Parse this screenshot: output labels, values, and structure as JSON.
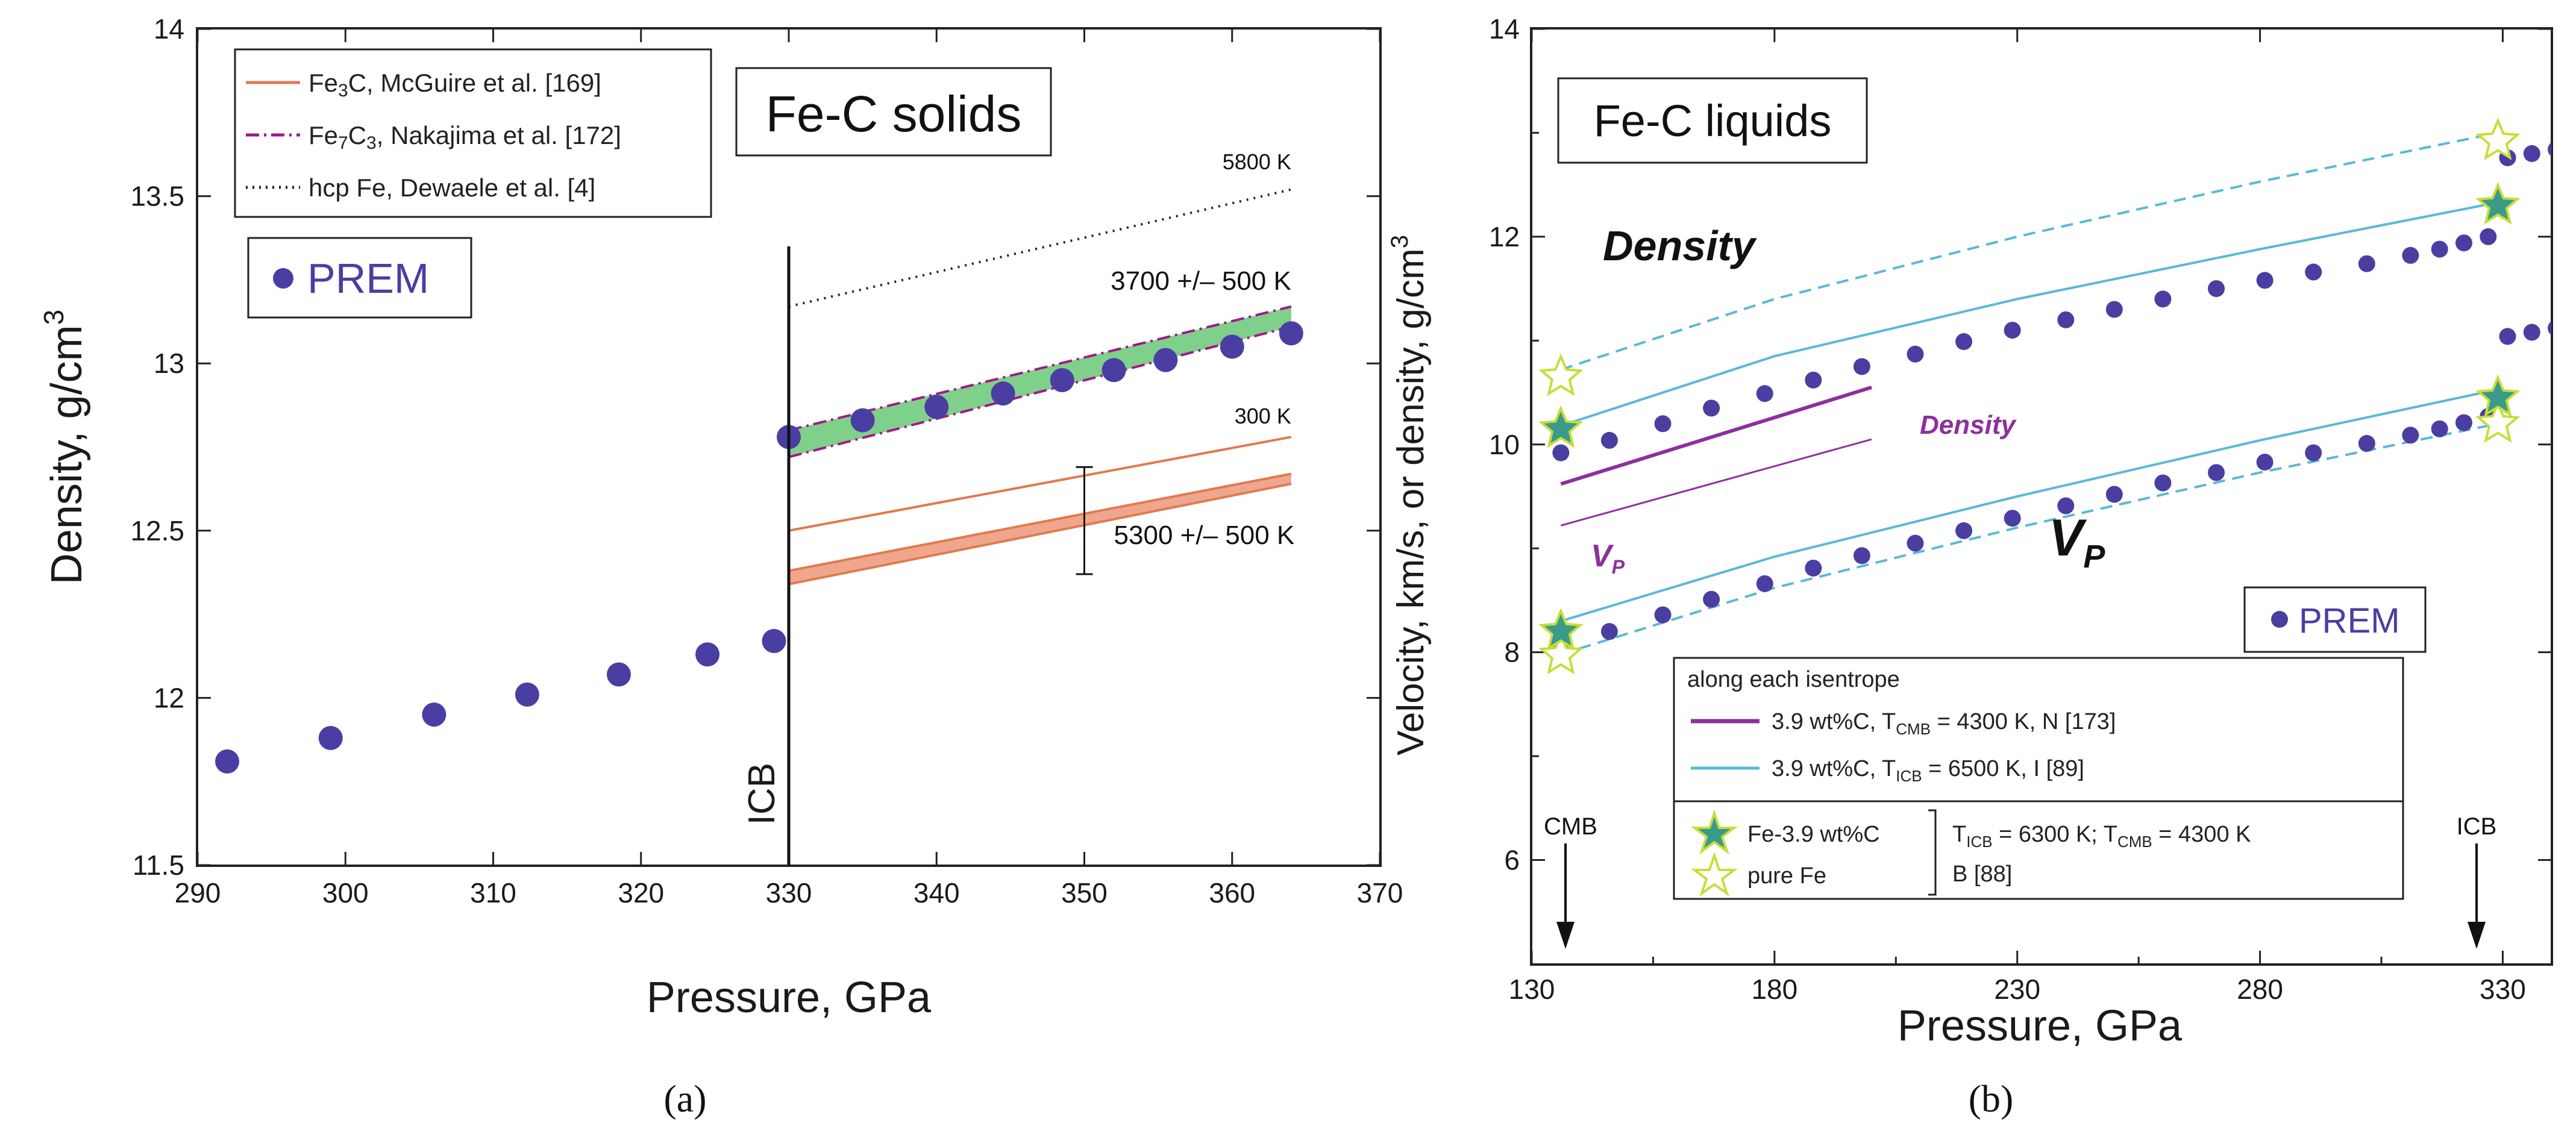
{
  "chart_data": [
    {
      "type": "scatter",
      "panel": "a",
      "caption": "(a)",
      "title": "Fe-C solids",
      "xlabel": "Pressure, GPa",
      "ylabel": "Density, g/cm",
      "ylabel_sup": "3",
      "xlim": [
        290,
        370
      ],
      "ylim": [
        11.5,
        14
      ],
      "x_ticks": [
        290,
        300,
        310,
        320,
        330,
        340,
        350,
        360,
        370
      ],
      "x_tick_labels": [
        "290",
        "300",
        "310",
        "320",
        "330",
        "340",
        "350",
        "360",
        "370"
      ],
      "y_ticks": [
        11.5,
        12,
        12.5,
        13,
        13.5,
        14
      ],
      "y_tick_labels": [
        "11.5",
        "12",
        "12.5",
        "13",
        "13.5",
        "14"
      ],
      "icb_label": "ICB",
      "icb_pressure": 330,
      "prem": {
        "label": "PREM",
        "color": "#4a3ea3",
        "x": [
          292,
          299,
          306,
          312.3,
          318.5,
          324.5,
          329,
          330,
          335,
          340,
          344.5,
          348.5,
          352,
          355.5,
          360,
          364
        ],
        "y": [
          11.81,
          11.88,
          11.95,
          12.01,
          12.07,
          12.13,
          12.17,
          12.78,
          12.83,
          12.87,
          12.91,
          12.95,
          12.98,
          13.01,
          13.05,
          13.09
        ]
      },
      "series": [
        {
          "name": "Fe3C, McGuire et al. [169]",
          "style": "solid",
          "color": "#e07a4f",
          "x": [
            330,
            364
          ],
          "y": [
            12.5,
            12.78
          ],
          "label": "300 K"
        },
        {
          "name": "Fe3C band",
          "style": "band",
          "color": "#e07a4f",
          "fill": "#f0a68d",
          "x": [
            330,
            364
          ],
          "y_low": [
            12.34,
            12.64
          ],
          "y_high": [
            12.38,
            12.67
          ],
          "label": "5300 +/– 500 K",
          "error_x": 350,
          "error_y": [
            12.37,
            12.69
          ]
        },
        {
          "name": "Fe7C3, Nakajima et al. [172]",
          "style": "dashdot",
          "color": "#a4168c",
          "fill": "#7fd08a",
          "x": [
            330,
            364
          ],
          "y_low": [
            12.72,
            13.11
          ],
          "y_high": [
            12.8,
            13.17
          ],
          "label": "3700 +/– 500 K"
        },
        {
          "name": "hcp Fe, Dewaele et al. [4]",
          "style": "dotted",
          "color": "#222222",
          "x": [
            330,
            364
          ],
          "y": [
            13.17,
            13.52
          ],
          "label": "5800 K"
        }
      ],
      "legend": [
        {
          "id": "fe3c",
          "pre": "Fe",
          "sub1": "3",
          "post1": "C, McGuire et al. [169]"
        },
        {
          "id": "fe7c3",
          "pre": "Fe",
          "sub1": "7",
          "mid": "C",
          "sub2": "3",
          "post1": ", Nakajima et al. [172]"
        },
        {
          "id": "hcp",
          "pre": "hcp Fe, Dewaele et al. [4]"
        }
      ]
    },
    {
      "type": "scatter",
      "panel": "b",
      "caption": "(b)",
      "title": "Fe-C liquids",
      "xlabel": "Pressure, GPa",
      "ylabel": "Velocity, km/s, or density, g/cm",
      "ylabel_sup": "3",
      "xlim": [
        130,
        340
      ],
      "ylim": [
        5,
        14
      ],
      "x_ticks": [
        130,
        180,
        230,
        280,
        330
      ],
      "x_tick_labels": [
        "130",
        "180",
        "230",
        "280",
        "330"
      ],
      "y_ticks": [
        6,
        8,
        10,
        12,
        14
      ],
      "y_tick_labels": [
        "6",
        "8",
        "10",
        "12",
        "14"
      ],
      "cmb_label": "CMB",
      "icb_label": "ICB",
      "density_label": "Density",
      "vp_label": "V",
      "vp_sub": "P",
      "inset_density_label": "Density",
      "inset_vp_label": "V",
      "inset_vp_sub": "P",
      "prem_label": "PREM",
      "prem_density": {
        "x": [
          136,
          146,
          157,
          167,
          178,
          188,
          198,
          209,
          219,
          229,
          240,
          250,
          260,
          271,
          281,
          291,
          302,
          311,
          317,
          322,
          327,
          331,
          336,
          341
        ],
        "y": [
          9.92,
          10.04,
          10.2,
          10.35,
          10.49,
          10.62,
          10.75,
          10.87,
          10.99,
          11.1,
          11.2,
          11.3,
          11.4,
          11.5,
          11.58,
          11.66,
          11.74,
          11.82,
          11.88,
          11.94,
          12.0,
          12.76,
          12.8,
          12.84
        ]
      },
      "prem_density_ic": {
        "x": [
          331,
          336,
          341
        ],
        "y": [
          11.04,
          11.08,
          11.12
        ]
      },
      "prem_vp": {
        "x": [
          136,
          146,
          157,
          167,
          178,
          188,
          198,
          209,
          219,
          229,
          240,
          250,
          260,
          271,
          281,
          291,
          302,
          311,
          317,
          322,
          327
        ],
        "y": [
          8.07,
          8.2,
          8.36,
          8.51,
          8.66,
          8.81,
          8.93,
          9.05,
          9.17,
          9.29,
          9.41,
          9.52,
          9.63,
          9.73,
          9.83,
          9.92,
          10.01,
          10.09,
          10.15,
          10.21,
          10.27
        ]
      },
      "series": [
        {
          "name": "3.9 wt%C, TICB = 6500 K, I [89] density",
          "style": "solid",
          "color": "#5ab9d6",
          "x": [
            136,
            180,
            230,
            280,
            329
          ],
          "y": [
            10.18,
            10.85,
            11.4,
            11.88,
            12.33
          ]
        },
        {
          "name": "3.9 wt%C, TICB = 6500 K, I [89] VP",
          "style": "solid",
          "color": "#5ab9d6",
          "x": [
            136,
            180,
            230,
            280,
            329
          ],
          "y": [
            8.3,
            8.92,
            9.5,
            10.04,
            10.53
          ]
        },
        {
          "name": "pure Fe density",
          "style": "dashed",
          "color": "#5ab9d6",
          "x": [
            136,
            180,
            230,
            280,
            329
          ],
          "y": [
            10.72,
            11.4,
            12.0,
            12.53,
            13.0
          ]
        },
        {
          "name": "pure Fe VP",
          "style": "dashed",
          "color": "#5ab9d6",
          "x": [
            136,
            180,
            230,
            280,
            329
          ],
          "y": [
            7.98,
            8.62,
            9.2,
            9.73,
            10.2
          ]
        },
        {
          "name": "3.9 wt%C, TCMB = 4300 K, N [173] density",
          "style": "solid",
          "color": "#8e2f9e",
          "x": [
            136,
            200
          ],
          "y": [
            9.62,
            10.55
          ]
        },
        {
          "name": "3.9 wt%C, TCMB = 4300 K, N [173] VP",
          "style": "solid",
          "color": "#8e2f9e",
          "x": [
            136,
            200
          ],
          "y": [
            9.22,
            10.05
          ]
        }
      ],
      "stars": {
        "fe39": {
          "label": "Fe-3.9 wt%C",
          "color": "#3a9a8c",
          "points": [
            {
              "x": 136,
              "y": 10.15
            },
            {
              "x": 136,
              "y": 8.2
            },
            {
              "x": 329,
              "y": 12.3
            },
            {
              "x": 329,
              "y": 10.45
            }
          ]
        },
        "pure_fe": {
          "label": "pure Fe",
          "color": "#c7dd3a",
          "points": [
            {
              "x": 136,
              "y": 10.65
            },
            {
              "x": 136,
              "y": 7.97
            },
            {
              "x": 329,
              "y": 12.92
            },
            {
              "x": 329,
              "y": 10.2
            }
          ]
        }
      },
      "legend": {
        "header": "along each isentrope",
        "row1": {
          "pre": "3.9 wt%C, T",
          "sub": "CMB",
          "post": " = 4300 K, N [173]"
        },
        "row2": {
          "pre": "3.9 wt%C, T",
          "sub": "ICB",
          "post": " = 6500 K, I [89]"
        },
        "row3_label": "Fe-3.9 wt%C",
        "row4_label": "pure Fe",
        "cond1_pre": "T",
        "cond1_sub": "ICB",
        "cond1_mid": " = 6300 K; T",
        "cond1_sub2": "CMB",
        "cond1_post": " = 4300 K",
        "cond2": "B [88]"
      }
    }
  ],
  "colors": {
    "prem": "#4a3ea3",
    "orange": "#e07a4f",
    "orange_fill": "#f0a68d",
    "green_fill": "#7fd08a",
    "magenta": "#a4168c",
    "purple": "#8e2f9e",
    "cyan": "#5ab9d6"
  }
}
